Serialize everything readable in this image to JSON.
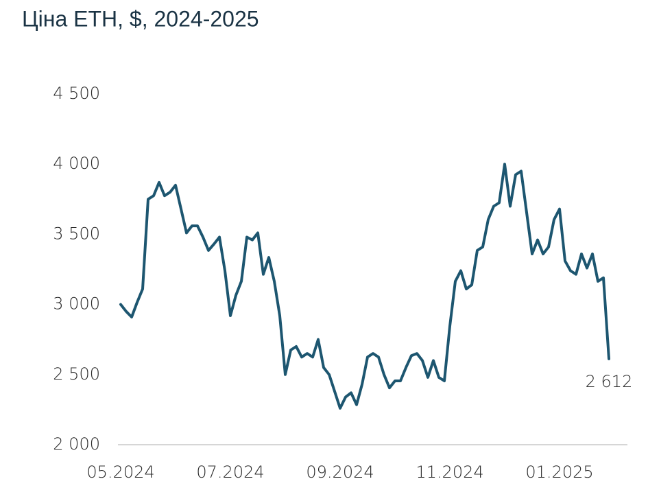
{
  "chart_data": {
    "type": "line",
    "title": "Ціна ETH, $, 2024-2025",
    "categories": [
      "05.2024",
      null,
      null,
      null,
      null,
      null,
      null,
      null,
      null,
      null,
      null,
      null,
      null,
      null,
      null,
      null,
      null,
      null,
      null,
      null,
      "07.2024",
      null,
      null,
      null,
      null,
      null,
      null,
      null,
      null,
      null,
      null,
      null,
      null,
      null,
      null,
      null,
      null,
      null,
      null,
      null,
      "09.2024",
      null,
      null,
      null,
      null,
      null,
      null,
      null,
      null,
      null,
      null,
      null,
      null,
      null,
      null,
      null,
      null,
      null,
      null,
      null,
      "11.2024",
      null,
      null,
      null,
      null,
      null,
      null,
      null,
      null,
      null,
      null,
      null,
      null,
      null,
      null,
      null,
      null,
      null,
      null,
      null,
      "01.2025",
      null,
      null,
      null,
      null,
      null,
      null,
      null,
      null,
      null
    ],
    "series": [
      {
        "name": "ETH",
        "color": "#1d5670",
        "values": [
          3000,
          2950,
          2910,
          3015,
          3110,
          3750,
          3775,
          3870,
          3775,
          3800,
          3850,
          3680,
          3510,
          3560,
          3560,
          3480,
          3385,
          3430,
          3480,
          3240,
          2920,
          3065,
          3165,
          3480,
          3460,
          3510,
          3215,
          3335,
          3165,
          2920,
          2500,
          2675,
          2700,
          2625,
          2650,
          2625,
          2750,
          2550,
          2500,
          2380,
          2260,
          2340,
          2370,
          2285,
          2430,
          2625,
          2650,
          2625,
          2500,
          2405,
          2455,
          2455,
          2550,
          2635,
          2650,
          2600,
          2480,
          2600,
          2480,
          2455,
          2845,
          3165,
          3240,
          3110,
          3140,
          3385,
          3410,
          3605,
          3700,
          3725,
          4000,
          3700,
          3925,
          3950,
          3655,
          3360,
          3460,
          3360,
          3410,
          3605,
          3680,
          3310,
          3240,
          3215,
          3360,
          3260,
          3360,
          3165,
          3190,
          2612
        ],
        "value_labels": [
          null,
          null,
          null,
          null,
          null,
          null,
          null,
          null,
          null,
          null,
          null,
          null,
          null,
          null,
          null,
          null,
          null,
          null,
          null,
          null,
          null,
          null,
          null,
          null,
          null,
          null,
          null,
          null,
          null,
          null,
          null,
          null,
          null,
          null,
          null,
          null,
          null,
          null,
          null,
          null,
          null,
          null,
          null,
          null,
          null,
          null,
          null,
          null,
          null,
          null,
          null,
          null,
          null,
          null,
          null,
          null,
          null,
          null,
          null,
          null,
          null,
          null,
          null,
          null,
          null,
          null,
          null,
          null,
          null,
          null,
          null,
          null,
          null,
          null,
          null,
          null,
          null,
          null,
          null,
          null,
          null,
          null,
          null,
          null,
          null,
          null,
          null,
          null,
          null,
          "2 612"
        ]
      }
    ],
    "ylim": [
      2000,
      4500
    ],
    "yticks": [
      {
        "value": 2000,
        "label": "2 000"
      },
      {
        "value": 2500,
        "label": "2 500"
      },
      {
        "value": 3000,
        "label": "3 000"
      },
      {
        "value": 3500,
        "label": "3 500"
      },
      {
        "value": 4000,
        "label": "4 000"
      },
      {
        "value": 4500,
        "label": "4 500"
      }
    ],
    "grid": false
  }
}
